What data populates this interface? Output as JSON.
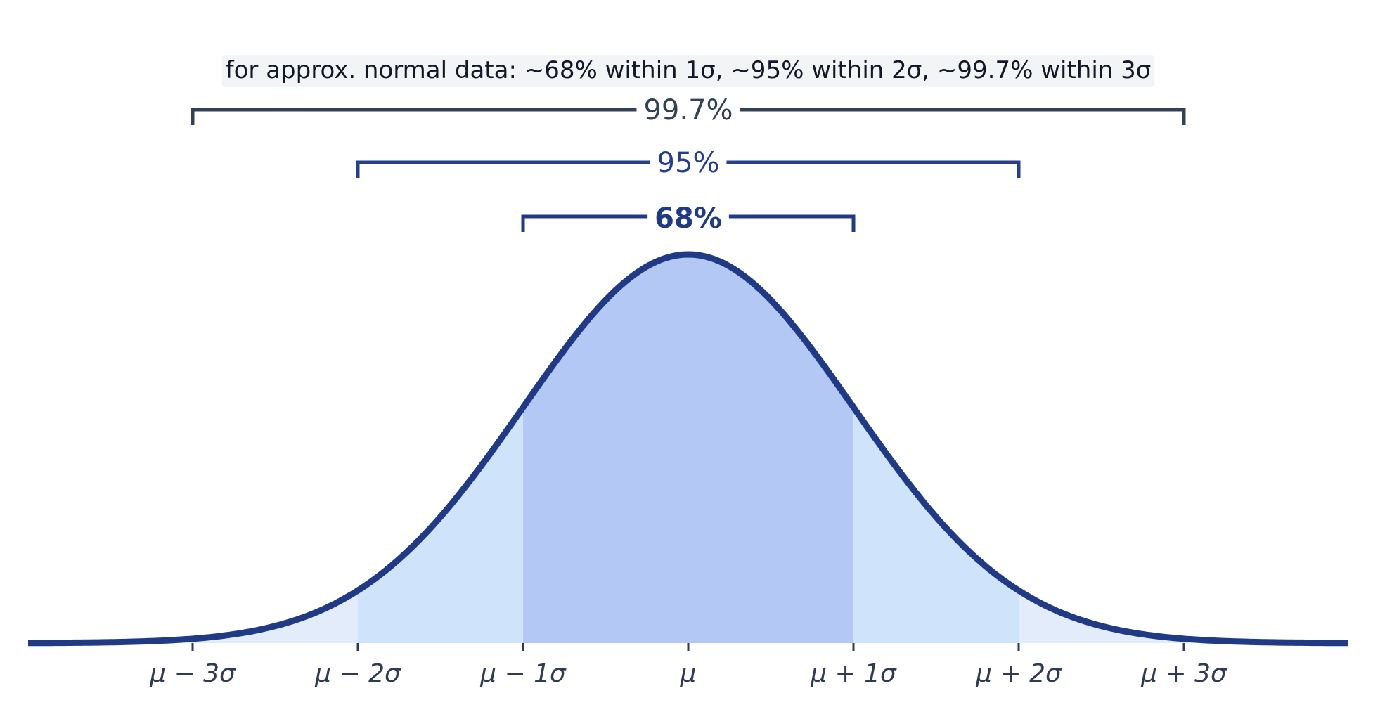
{
  "chart_data": {
    "type": "area",
    "title": "",
    "xlabel": "",
    "ylabel": "",
    "distribution": "standard normal",
    "xlim": [
      -4,
      4
    ],
    "grid": false,
    "annotation": "for approx. normal data: ~68% within 1σ, ~95% within 2σ, ~99.7% within 3σ",
    "ticks": [
      {
        "value": -3,
        "label": "μ − 3σ"
      },
      {
        "value": -2,
        "label": "μ − 2σ"
      },
      {
        "value": -1,
        "label": "μ − 1σ"
      },
      {
        "value": 0,
        "label": "μ"
      },
      {
        "value": 1,
        "label": "μ + 1σ"
      },
      {
        "value": 2,
        "label": "μ + 2σ"
      },
      {
        "value": 3,
        "label": "μ + 3σ"
      }
    ],
    "bands": [
      {
        "from": -1,
        "to": 1,
        "percent": 68,
        "label": "68%"
      },
      {
        "from": -2,
        "to": 2,
        "percent": 95,
        "label": "95%"
      },
      {
        "from": -3,
        "to": 3,
        "percent": 99.7,
        "label": "99.7%"
      }
    ]
  },
  "colors": {
    "curve": "#213a86",
    "band1": "#b4c8f5",
    "band2": "#cfe3fb",
    "band3": "#e3ecfb",
    "bracket_outer": "#334155",
    "bracket_mid": "#263f8c",
    "bracket_inner": "#213a86",
    "note_bg": "#f3f4f6",
    "tick_text": "#2f3b55"
  }
}
